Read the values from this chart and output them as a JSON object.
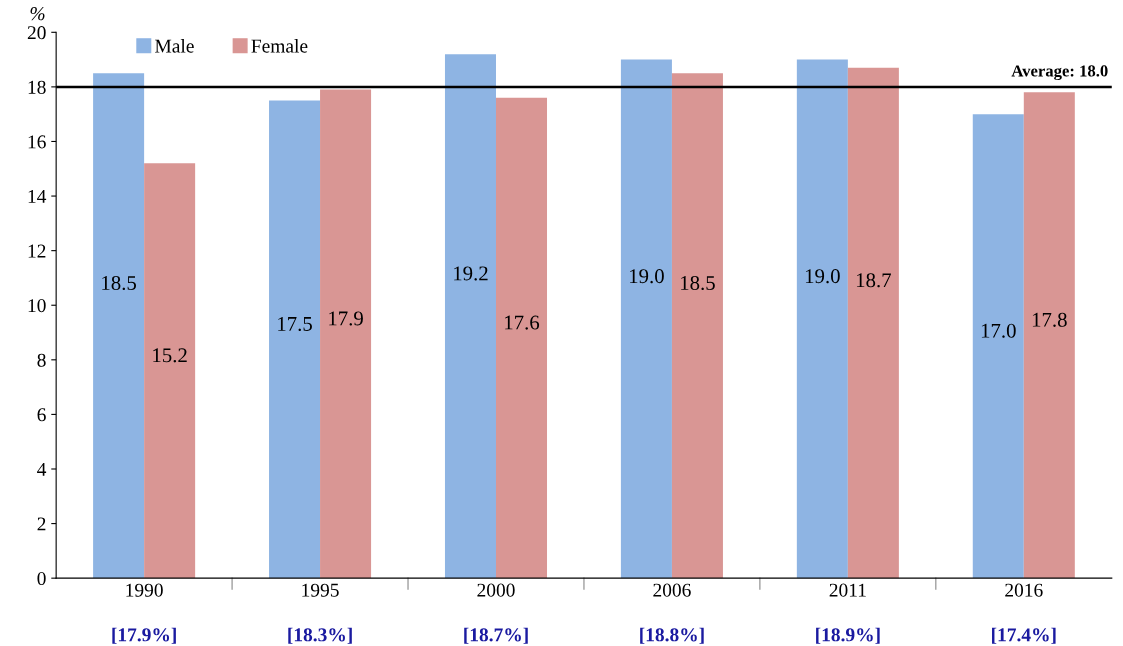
{
  "chart_data": {
    "type": "bar",
    "categories": [
      "1990",
      "1995",
      "2000",
      "2006",
      "2011",
      "2016"
    ],
    "series": [
      {
        "name": "Male",
        "color": "#8eb4e3",
        "values": [
          18.5,
          17.5,
          19.2,
          19.0,
          19.0,
          17.0
        ],
        "value_labels": [
          "18.5",
          "17.5",
          "19.2",
          "19.0",
          "19.0",
          "17.0"
        ]
      },
      {
        "name": "Female",
        "color": "#d99694",
        "values": [
          15.2,
          17.9,
          17.6,
          18.5,
          18.7,
          17.8
        ],
        "value_labels": [
          "15.2",
          "17.9",
          "17.6",
          "18.5",
          "18.7",
          "17.8"
        ]
      }
    ],
    "ylabel": "%",
    "ylim": [
      0,
      20
    ],
    "yticks": [
      0,
      2,
      4,
      6,
      8,
      10,
      12,
      14,
      16,
      18,
      20
    ],
    "ref_lines": [
      {
        "axis": "y",
        "value": 18.0,
        "label": "Average: 18.0",
        "color": "#000000"
      }
    ],
    "annotations": [
      "[17.9%]",
      "[18.3%]",
      "[18.7%]",
      "[18.8%]",
      "[18.9%]",
      "[17.4%]"
    ],
    "legend": "top left",
    "grid": false
  }
}
